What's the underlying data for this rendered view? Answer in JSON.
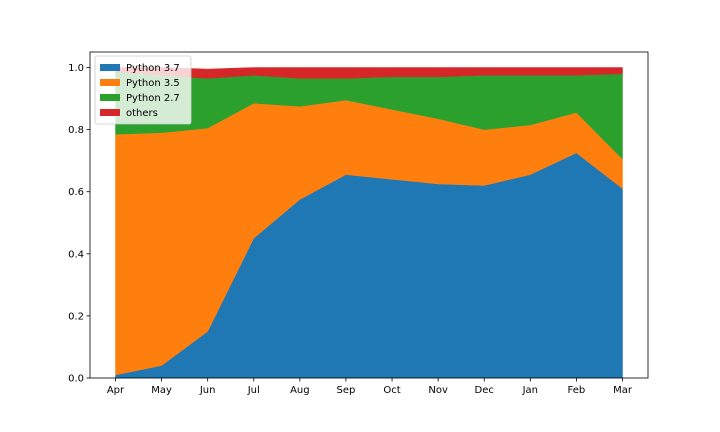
{
  "chart_data": {
    "type": "area",
    "stacked": true,
    "title": "",
    "xlabel": "",
    "ylabel": "",
    "categories": [
      "Apr",
      "May",
      "Jun",
      "Jul",
      "Aug",
      "Sep",
      "Oct",
      "Nov",
      "Dec",
      "Jan",
      "Feb",
      "Mar"
    ],
    "ylim": [
      0,
      1.05
    ],
    "yticks": [
      "0.0",
      "0.2",
      "0.4",
      "0.6",
      "0.8",
      "1.0"
    ],
    "grid": false,
    "legend_position": "top-left",
    "series": [
      {
        "name": "Python 3.7",
        "color": "#1f77b4",
        "values": [
          0.01,
          0.04,
          0.15,
          0.45,
          0.575,
          0.655,
          0.64,
          0.625,
          0.62,
          0.655,
          0.725,
          0.61
        ]
      },
      {
        "name": "Python 3.5",
        "color": "#ff7f0e",
        "values": [
          0.775,
          0.75,
          0.655,
          0.435,
          0.3,
          0.24,
          0.225,
          0.21,
          0.18,
          0.16,
          0.13,
          0.095
        ]
      },
      {
        "name": "Python 2.7",
        "color": "#2ca02c",
        "values": [
          0.2,
          0.185,
          0.16,
          0.09,
          0.09,
          0.07,
          0.105,
          0.135,
          0.175,
          0.16,
          0.12,
          0.275
        ]
      },
      {
        "name": "others",
        "color": "#d62728",
        "values": [
          0.015,
          0.025,
          0.03,
          0.025,
          0.035,
          0.035,
          0.03,
          0.03,
          0.025,
          0.025,
          0.025,
          0.02
        ]
      }
    ]
  }
}
